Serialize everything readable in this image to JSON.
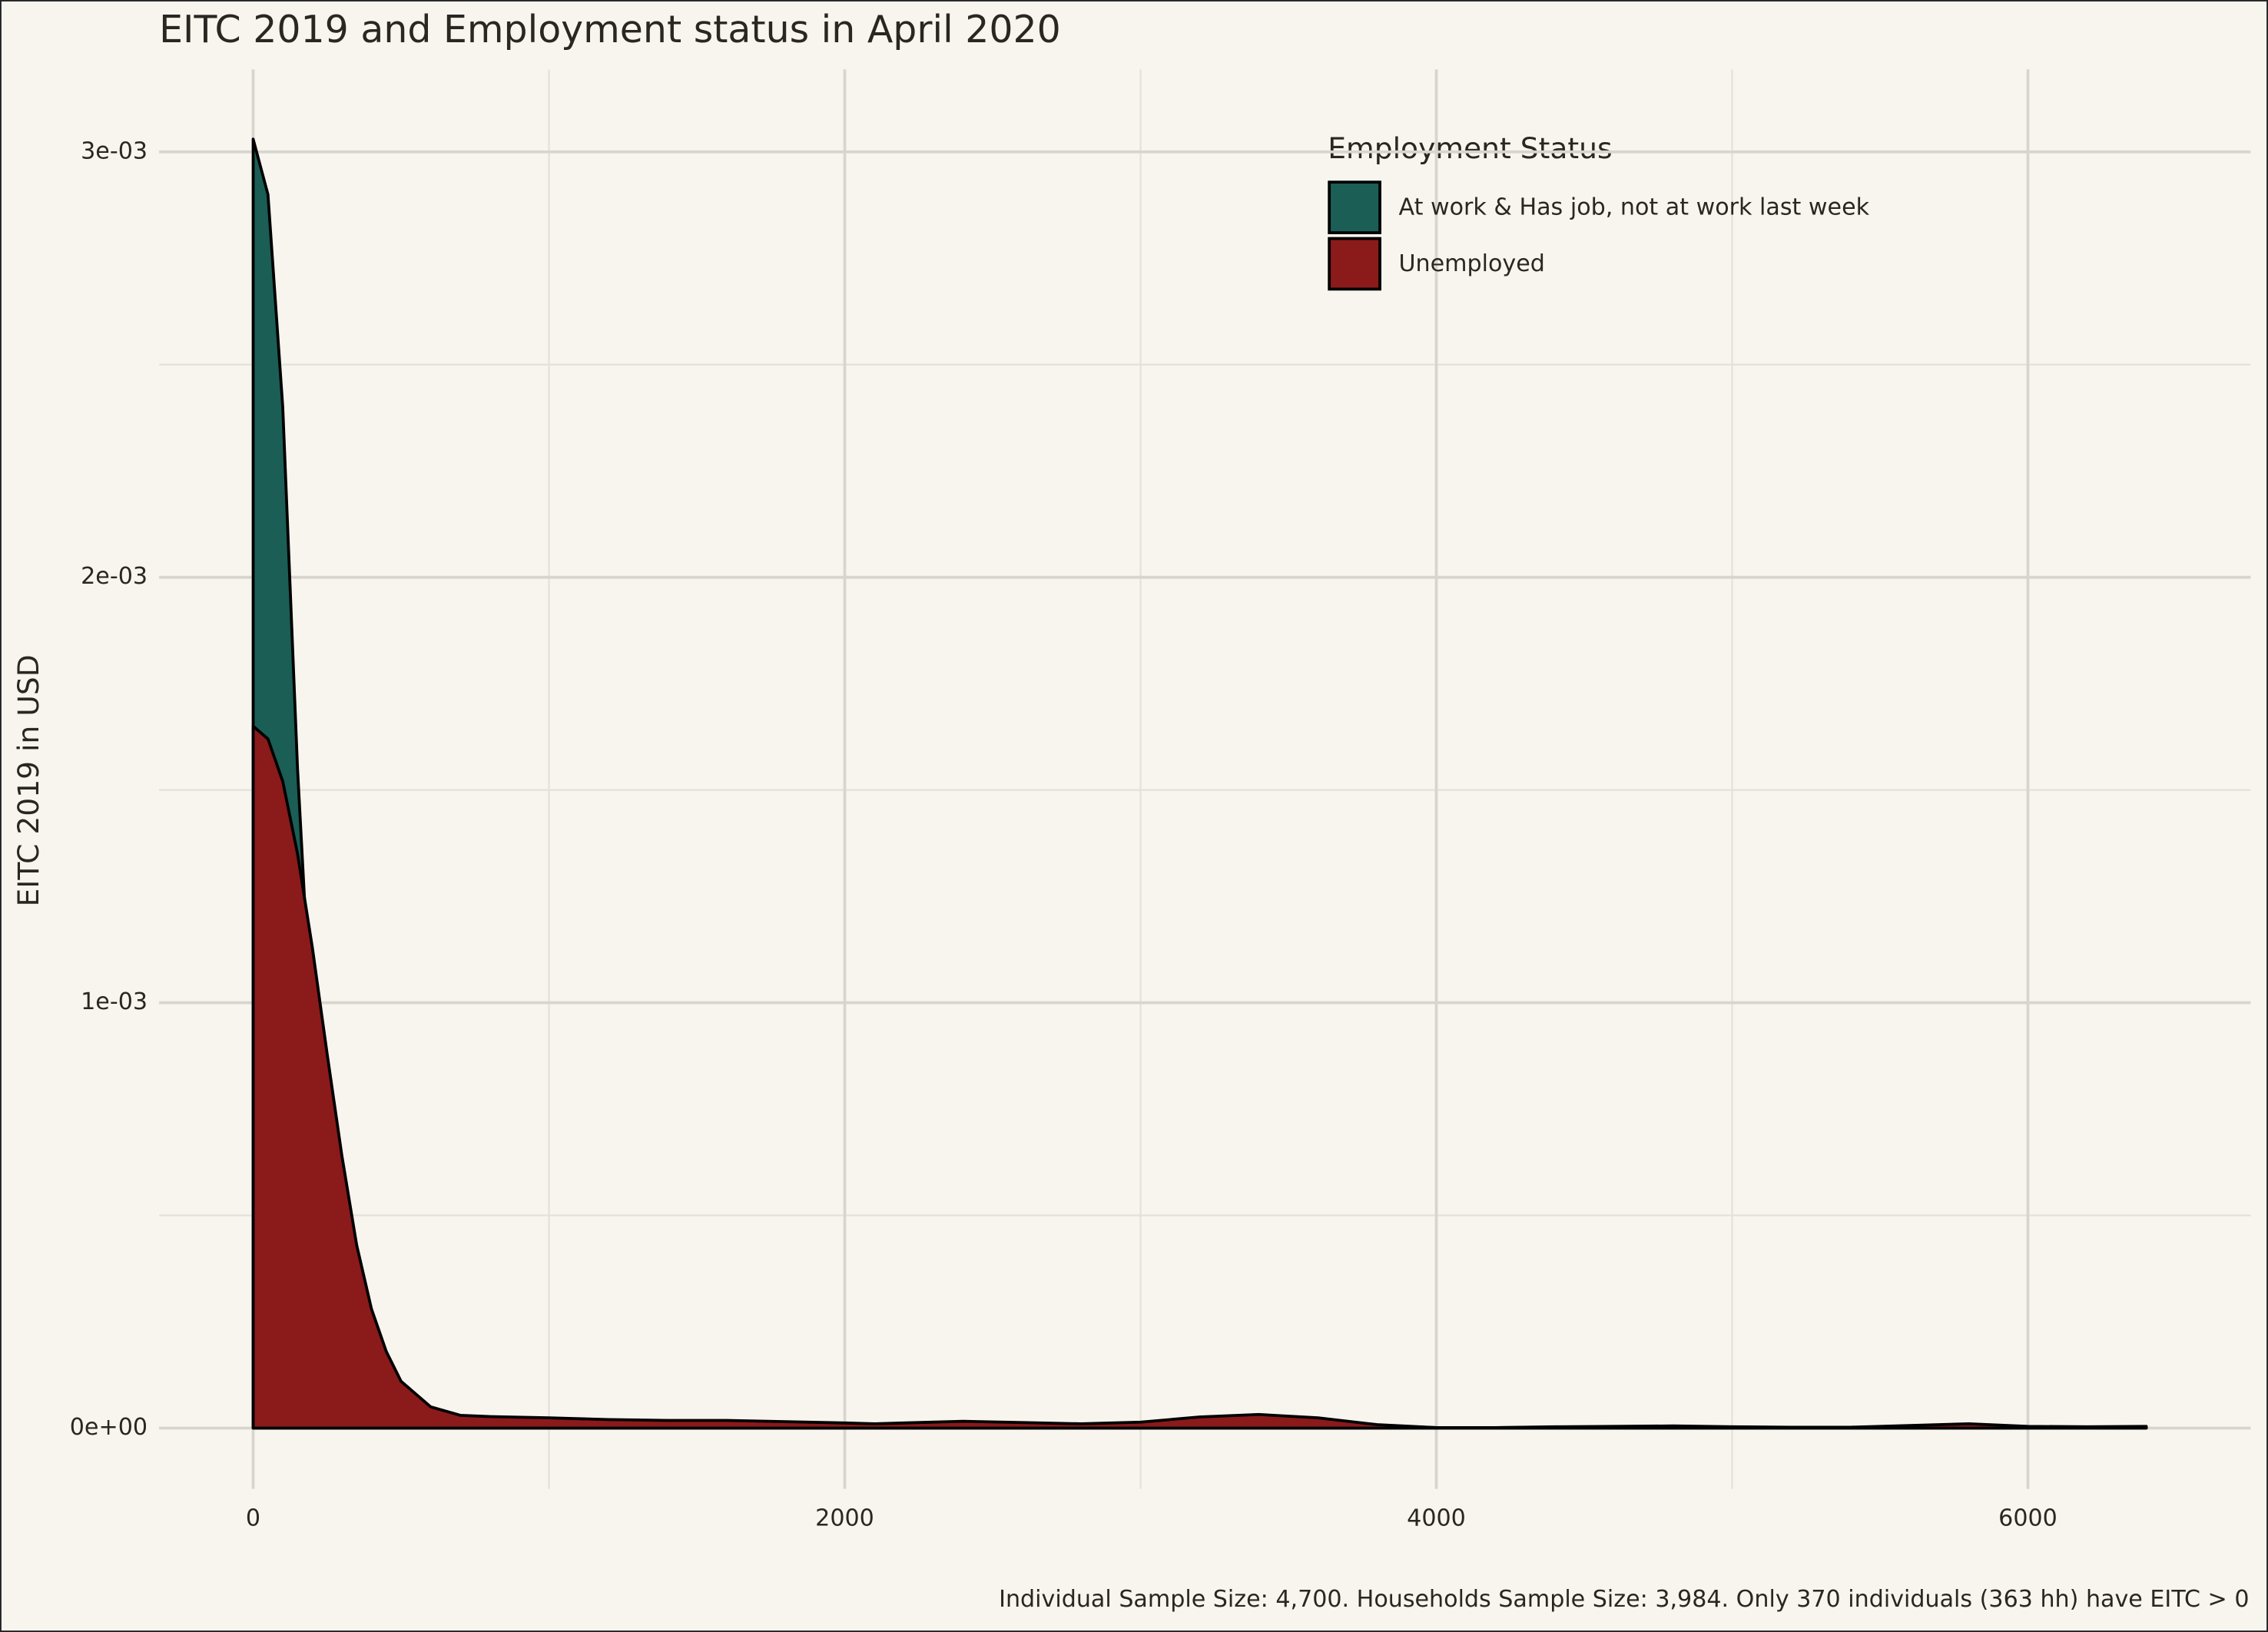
{
  "chart_data": {
    "type": "area",
    "title": "EITC 2019 and Employment status in April 2020",
    "y_label": "EITC 2019 in USD",
    "caption": "Individual Sample Size: 4,700. Households Sample Size: 3,984. Only 370 individuals (363 hh) have EITC > 0",
    "legend_title": "Employment Status",
    "legend_position": "top-right",
    "grid": true,
    "x": [
      0,
      50,
      100,
      150,
      200,
      250,
      300,
      350,
      400,
      450,
      500,
      600,
      700,
      800,
      1000,
      1200,
      1400,
      1600,
      1800,
      2000,
      2100,
      2200,
      2400,
      2600,
      2800,
      3000,
      3200,
      3400,
      3600,
      3800,
      4000,
      4200,
      4400,
      4600,
      4800,
      5000,
      5200,
      5400,
      5600,
      5800,
      6000,
      6200,
      6400
    ],
    "series": [
      {
        "name": "At work & Has job, not at work last week",
        "color": "#1a5e55",
        "values": [
          0.00303,
          0.0029,
          0.0024,
          0.00155,
          0.0009,
          0.00048,
          0.00024,
          0.00012,
          6e-05,
          4e-05,
          3e-05,
          2.5e-05,
          2e-05,
          1.8e-05,
          1.6e-05,
          1.4e-05,
          1.2e-05,
          1.2e-05,
          1e-05,
          8e-06,
          7e-06,
          8e-06,
          1e-05,
          9e-06,
          7e-06,
          1e-05,
          1.8e-05,
          2.2e-05,
          1.6e-05,
          6e-06,
          1e-06,
          1e-06,
          2e-06,
          3e-06,
          4e-06,
          2e-06,
          1e-06,
          1e-06,
          4e-06,
          7e-06,
          3e-06,
          2e-06,
          3e-06
        ]
      },
      {
        "name": "Unemployed",
        "color": "#8b1a1a",
        "values": [
          0.00165,
          0.00162,
          0.00152,
          0.00135,
          0.00113,
          0.00088,
          0.00064,
          0.00043,
          0.00028,
          0.00018,
          0.00011,
          5e-05,
          3e-05,
          2.7e-05,
          2.4e-05,
          2e-05,
          1.8e-05,
          1.8e-05,
          1.5e-05,
          1.2e-05,
          1e-05,
          1.2e-05,
          1.6e-05,
          1.3e-05,
          1e-05,
          1.4e-05,
          2.6e-05,
          3.2e-05,
          2.4e-05,
          8e-06,
          1e-06,
          1e-06,
          3e-06,
          4e-06,
          5e-06,
          3e-06,
          2e-06,
          2e-06,
          6e-06,
          1e-05,
          4e-06,
          3e-06,
          4e-06
        ]
      }
    ],
    "xlim": [
      -318,
      6753
    ],
    "ylim": [
      -0.000143,
      0.003194
    ],
    "xticks": [
      0,
      2000,
      4000,
      6000
    ],
    "x_minor_ticks": [
      1000,
      3000,
      5000
    ],
    "yticks": [
      {
        "value": 0,
        "label": "0e+00"
      },
      {
        "value": 0.001,
        "label": "1e-03"
      },
      {
        "value": 0.002,
        "label": "2e-03"
      },
      {
        "value": 0.003,
        "label": "3e-03"
      }
    ],
    "y_minor_ticks": [
      0.0005,
      0.0015,
      0.0025
    ]
  }
}
